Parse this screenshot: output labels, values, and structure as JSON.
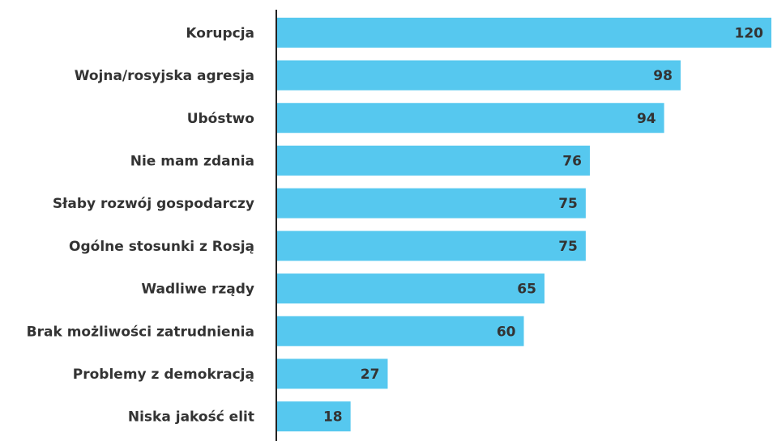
{
  "chart_data": {
    "type": "bar",
    "orientation": "horizontal",
    "categories": [
      "Korupcja",
      "Wojna/rosyjska agresja",
      "Ubóstwo",
      "Nie mam zdania",
      "Słaby rozwój gospodarczy",
      "Ogólne stosunki z Rosją",
      "Wadliwe rządy",
      "Brak możliwości zatrudnienia",
      "Problemy z demokracją",
      "Niska jakość elit"
    ],
    "values": [
      120,
      98,
      94,
      76,
      75,
      75,
      65,
      60,
      27,
      18
    ],
    "color": "#56c8ef"
  }
}
